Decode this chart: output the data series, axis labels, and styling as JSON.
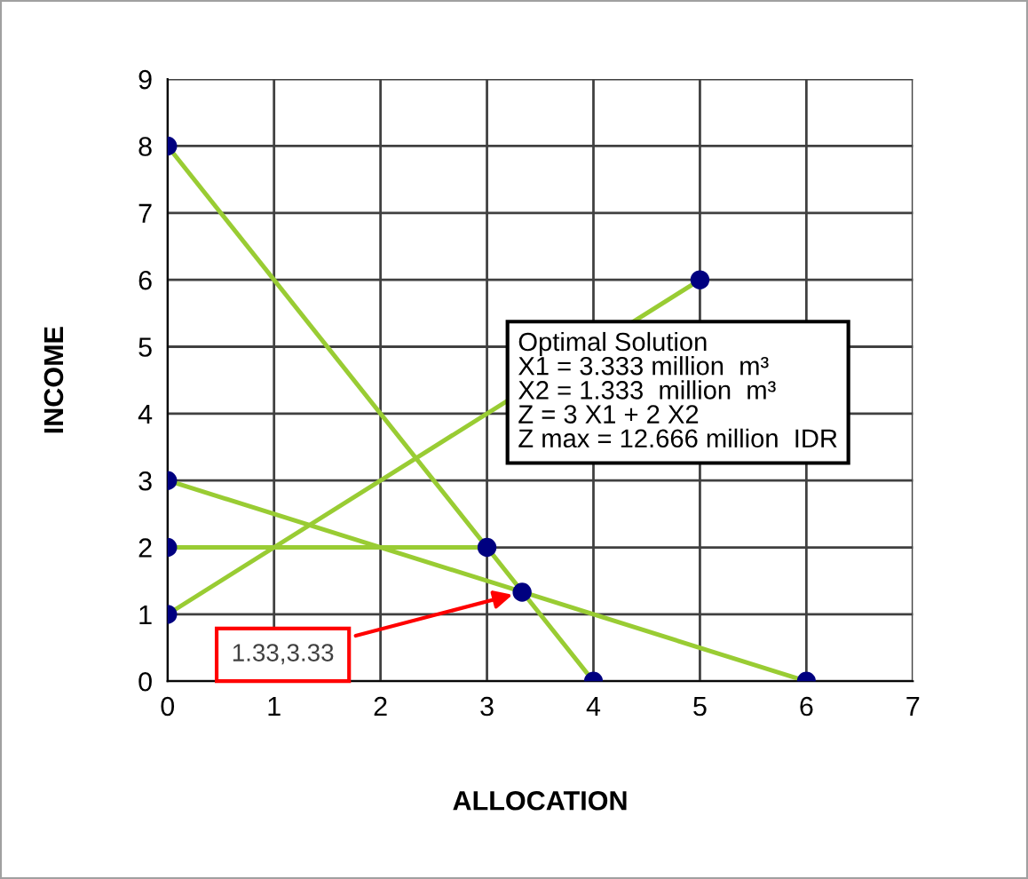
{
  "chart_data": {
    "type": "line",
    "xlabel": "ALLOCATION",
    "ylabel": "INCOME",
    "xlim": [
      0,
      7
    ],
    "ylim": [
      0,
      9
    ],
    "xticks": [
      0,
      1,
      2,
      3,
      4,
      5,
      6,
      7
    ],
    "yticks": [
      0,
      1,
      2,
      3,
      4,
      5,
      6,
      7,
      8,
      9
    ],
    "grid": true,
    "legend": false,
    "line_style": "solid",
    "series": [
      {
        "color": "#99cc33",
        "x": [
          0,
          4
        ],
        "values": [
          8,
          0
        ]
      },
      {
        "color": "#99cc33",
        "x": [
          0,
          5
        ],
        "values": [
          1,
          6
        ]
      },
      {
        "color": "#99cc33",
        "x": [
          0,
          6
        ],
        "values": [
          3,
          0
        ]
      },
      {
        "color": "#99cc33",
        "x": [
          0,
          3
        ],
        "values": [
          2,
          2
        ]
      },
      {
        "type": "scatter",
        "marker": "circle",
        "color": "#000080",
        "x": [
          0,
          0,
          0,
          0,
          3,
          3.33,
          4,
          5,
          6
        ],
        "values": [
          8,
          1,
          3,
          2,
          2,
          1.33,
          0,
          6,
          0
        ]
      }
    ],
    "annotations": [
      {
        "text": "1.33,3.33",
        "x": 3.33,
        "y": 1.33
      },
      "Optimal Solution\nX1 = 3.333 million  m³\nX2 = 1.333  million  m³\nZ = 3 X1 + 2 X2\nZ max = 12.666 million  IDR"
    ]
  }
}
